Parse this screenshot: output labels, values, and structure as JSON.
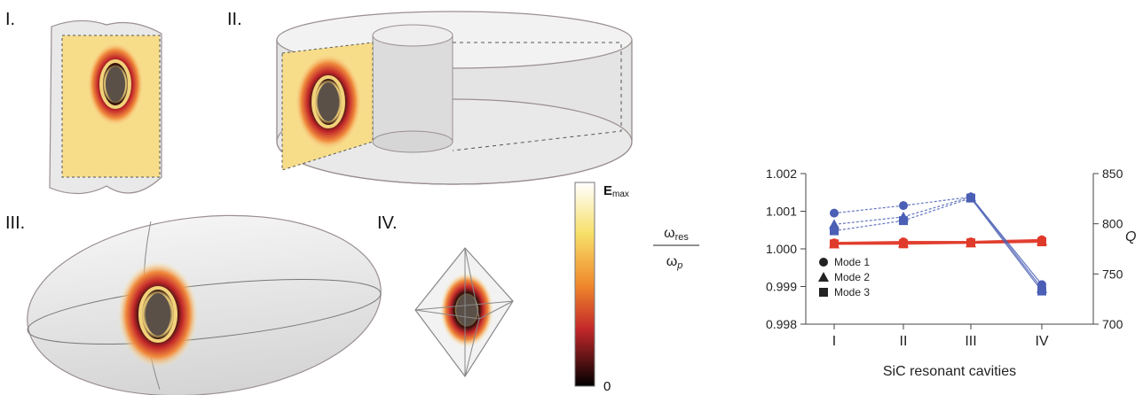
{
  "panels": {
    "labels": [
      "I.",
      "II.",
      "III.",
      "IV."
    ]
  },
  "colorbar": {
    "max_label": "E",
    "max_sub": "max",
    "min_label": "0"
  },
  "colors": {
    "blue": "#4a5fb5",
    "red": "#e03a2a",
    "shell": "#e6e6e6",
    "outline": "#9a8f8f"
  },
  "chart_data": {
    "type": "line",
    "categories": [
      "I",
      "II",
      "III",
      "IV"
    ],
    "xlabel": "SiC resonant cavities",
    "ylabel_left": {
      "num": "ω",
      "num_sub": "res",
      "den": "ω",
      "den_sub": "p"
    },
    "ylabel_right": "Q",
    "ylim_left": [
      0.998,
      1.002
    ],
    "ylim_right": [
      700,
      850
    ],
    "yticks_left": [
      "1.002",
      "1.001",
      "1.000",
      "0.999",
      "0.998"
    ],
    "yticks_right": [
      "850",
      "800",
      "750",
      "700"
    ],
    "series": [
      {
        "name": "Mode 1",
        "marker": "circle",
        "axis": "left",
        "color": "#4a5fb5",
        "values": [
          1.00095,
          1.00115,
          1.00138,
          0.99905
        ]
      },
      {
        "name": "Mode 2",
        "marker": "triangle",
        "axis": "left",
        "color": "#4a5fb5",
        "values": [
          1.00065,
          1.00085,
          1.00138,
          0.99895
        ]
      },
      {
        "name": "Mode 3",
        "marker": "square",
        "axis": "left",
        "color": "#4a5fb5",
        "values": [
          1.00048,
          1.00075,
          1.00135,
          0.99888
        ]
      },
      {
        "marker": "circle",
        "axis": "right",
        "color": "#e03a2a",
        "values": [
          781,
          782,
          782,
          784
        ]
      },
      {
        "marker": "triangle",
        "axis": "right",
        "color": "#e03a2a",
        "values": [
          780,
          781,
          781,
          783
        ]
      },
      {
        "marker": "square",
        "axis": "right",
        "color": "#e03a2a",
        "values": [
          780,
          780,
          781,
          782
        ]
      }
    ],
    "legend": [
      "Mode 1",
      "Mode 2",
      "Mode 3"
    ],
    "legend_position": "bottom-left"
  }
}
